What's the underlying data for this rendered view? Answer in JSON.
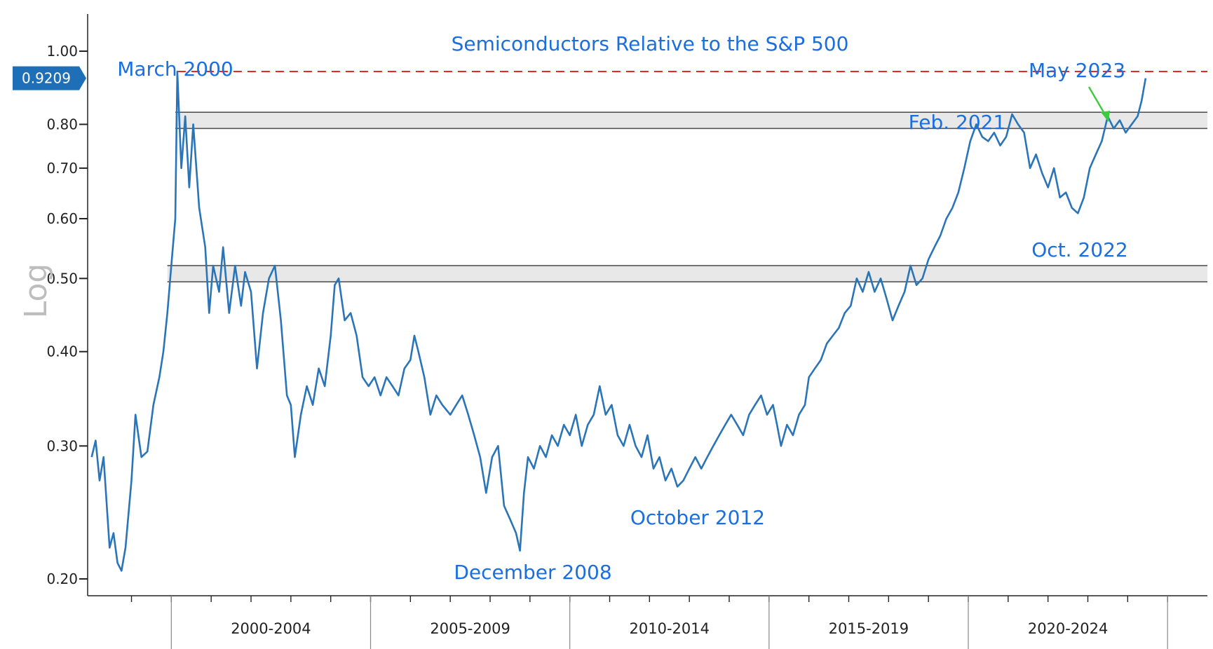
{
  "chart_data": {
    "type": "line",
    "title": "Semiconductors Relative to the S&P 500",
    "ylabel": "Log",
    "yscale": "log",
    "ylim": [
      0.19,
      1.12
    ],
    "xlim": [
      1997.9,
      2026.0
    ],
    "y_ticks": [
      {
        "value": 1.0,
        "label": "1.00"
      },
      {
        "value": 0.8,
        "label": "0.80"
      },
      {
        "value": 0.7,
        "label": "0.70"
      },
      {
        "value": 0.6,
        "label": "0.60"
      },
      {
        "value": 0.5,
        "label": "0.50"
      },
      {
        "value": 0.4,
        "label": "0.40"
      },
      {
        "value": 0.3,
        "label": "0.30"
      },
      {
        "value": 0.2,
        "label": "0.20"
      }
    ],
    "x_periods": [
      {
        "label": "2000-2004",
        "start": 2000,
        "end": 2005
      },
      {
        "label": "2005-2009",
        "start": 2005,
        "end": 2010
      },
      {
        "label": "2010-2014",
        "start": 2010,
        "end": 2015
      },
      {
        "label": "2015-2019",
        "start": 2015,
        "end": 2020
      },
      {
        "label": "2020-2024",
        "start": 2020,
        "end": 2025
      }
    ],
    "last_value_label": "0.9209",
    "last_value": 0.9209,
    "reference_line": {
      "value": 0.94,
      "color": "#e8262a"
    },
    "bands": [
      {
        "low": 0.79,
        "high": 0.83,
        "start": 2000.1
      },
      {
        "low": 0.495,
        "high": 0.52,
        "start": 1999.9
      }
    ],
    "annotations": [
      {
        "text": "March 2000",
        "x": 2000.2,
        "y": 0.94
      },
      {
        "text": "December 2008",
        "x": 2008.8,
        "y": 0.215
      },
      {
        "text": "October 2012",
        "x": 2012.1,
        "y": 0.267
      },
      {
        "text": "Feb. 2021",
        "x": 2021.1,
        "y": 0.825
      },
      {
        "text": "Oct. 2022",
        "x": 2022.75,
        "y": 0.61
      },
      {
        "text": "May 2023",
        "x": 2023.4,
        "y": 0.83
      }
    ],
    "series": [
      {
        "color": "#2a74b8",
        "points": [
          [
            1998.0,
            0.29
          ],
          [
            1998.1,
            0.305
          ],
          [
            1998.2,
            0.27
          ],
          [
            1998.3,
            0.29
          ],
          [
            1998.45,
            0.22
          ],
          [
            1998.55,
            0.23
          ],
          [
            1998.65,
            0.21
          ],
          [
            1998.75,
            0.205
          ],
          [
            1998.85,
            0.22
          ],
          [
            1999.0,
            0.27
          ],
          [
            1999.1,
            0.33
          ],
          [
            1999.25,
            0.29
          ],
          [
            1999.4,
            0.295
          ],
          [
            1999.55,
            0.34
          ],
          [
            1999.7,
            0.37
          ],
          [
            1999.8,
            0.4
          ],
          [
            1999.9,
            0.45
          ],
          [
            2000.0,
            0.52
          ],
          [
            2000.1,
            0.6
          ],
          [
            2000.15,
            0.94
          ],
          [
            2000.25,
            0.7
          ],
          [
            2000.35,
            0.82
          ],
          [
            2000.45,
            0.66
          ],
          [
            2000.55,
            0.8
          ],
          [
            2000.7,
            0.62
          ],
          [
            2000.85,
            0.55
          ],
          [
            2000.95,
            0.45
          ],
          [
            2001.05,
            0.52
          ],
          [
            2001.2,
            0.48
          ],
          [
            2001.3,
            0.55
          ],
          [
            2001.45,
            0.45
          ],
          [
            2001.6,
            0.52
          ],
          [
            2001.75,
            0.46
          ],
          [
            2001.85,
            0.51
          ],
          [
            2002.0,
            0.48
          ],
          [
            2002.15,
            0.38
          ],
          [
            2002.3,
            0.45
          ],
          [
            2002.45,
            0.5
          ],
          [
            2002.6,
            0.52
          ],
          [
            2002.75,
            0.44
          ],
          [
            2002.9,
            0.35
          ],
          [
            2003.0,
            0.34
          ],
          [
            2003.1,
            0.29
          ],
          [
            2003.25,
            0.33
          ],
          [
            2003.4,
            0.36
          ],
          [
            2003.55,
            0.34
          ],
          [
            2003.7,
            0.38
          ],
          [
            2003.85,
            0.36
          ],
          [
            2004.0,
            0.42
          ],
          [
            2004.1,
            0.49
          ],
          [
            2004.2,
            0.5
          ],
          [
            2004.35,
            0.44
          ],
          [
            2004.5,
            0.45
          ],
          [
            2004.65,
            0.42
          ],
          [
            2004.8,
            0.37
          ],
          [
            2004.95,
            0.36
          ],
          [
            2005.1,
            0.37
          ],
          [
            2005.25,
            0.35
          ],
          [
            2005.4,
            0.37
          ],
          [
            2005.55,
            0.36
          ],
          [
            2005.7,
            0.35
          ],
          [
            2005.85,
            0.38
          ],
          [
            2006.0,
            0.39
          ],
          [
            2006.1,
            0.42
          ],
          [
            2006.2,
            0.4
          ],
          [
            2006.35,
            0.37
          ],
          [
            2006.5,
            0.33
          ],
          [
            2006.65,
            0.35
          ],
          [
            2006.8,
            0.34
          ],
          [
            2007.0,
            0.33
          ],
          [
            2007.15,
            0.34
          ],
          [
            2007.3,
            0.35
          ],
          [
            2007.45,
            0.33
          ],
          [
            2007.6,
            0.31
          ],
          [
            2007.75,
            0.29
          ],
          [
            2007.9,
            0.26
          ],
          [
            2008.05,
            0.29
          ],
          [
            2008.2,
            0.3
          ],
          [
            2008.35,
            0.25
          ],
          [
            2008.5,
            0.24
          ],
          [
            2008.65,
            0.23
          ],
          [
            2008.75,
            0.218
          ],
          [
            2008.85,
            0.26
          ],
          [
            2008.95,
            0.29
          ],
          [
            2009.1,
            0.28
          ],
          [
            2009.25,
            0.3
          ],
          [
            2009.4,
            0.29
          ],
          [
            2009.55,
            0.31
          ],
          [
            2009.7,
            0.3
          ],
          [
            2009.85,
            0.32
          ],
          [
            2010.0,
            0.31
          ],
          [
            2010.15,
            0.33
          ],
          [
            2010.3,
            0.3
          ],
          [
            2010.45,
            0.32
          ],
          [
            2010.6,
            0.33
          ],
          [
            2010.75,
            0.36
          ],
          [
            2010.9,
            0.33
          ],
          [
            2011.05,
            0.34
          ],
          [
            2011.2,
            0.31
          ],
          [
            2011.35,
            0.3
          ],
          [
            2011.5,
            0.32
          ],
          [
            2011.65,
            0.3
          ],
          [
            2011.8,
            0.29
          ],
          [
            2011.95,
            0.31
          ],
          [
            2012.1,
            0.28
          ],
          [
            2012.25,
            0.29
          ],
          [
            2012.4,
            0.27
          ],
          [
            2012.55,
            0.28
          ],
          [
            2012.7,
            0.265
          ],
          [
            2012.85,
            0.27
          ],
          [
            2013.0,
            0.28
          ],
          [
            2013.15,
            0.29
          ],
          [
            2013.3,
            0.28
          ],
          [
            2013.45,
            0.29
          ],
          [
            2013.6,
            0.3
          ],
          [
            2013.75,
            0.31
          ],
          [
            2013.9,
            0.32
          ],
          [
            2014.05,
            0.33
          ],
          [
            2014.2,
            0.32
          ],
          [
            2014.35,
            0.31
          ],
          [
            2014.5,
            0.33
          ],
          [
            2014.65,
            0.34
          ],
          [
            2014.8,
            0.35
          ],
          [
            2014.95,
            0.33
          ],
          [
            2015.1,
            0.34
          ],
          [
            2015.2,
            0.32
          ],
          [
            2015.3,
            0.3
          ],
          [
            2015.45,
            0.32
          ],
          [
            2015.6,
            0.31
          ],
          [
            2015.75,
            0.33
          ],
          [
            2015.9,
            0.34
          ],
          [
            2016.0,
            0.37
          ],
          [
            2016.15,
            0.38
          ],
          [
            2016.3,
            0.39
          ],
          [
            2016.45,
            0.41
          ],
          [
            2016.6,
            0.42
          ],
          [
            2016.75,
            0.43
          ],
          [
            2016.9,
            0.45
          ],
          [
            2017.05,
            0.46
          ],
          [
            2017.2,
            0.5
          ],
          [
            2017.35,
            0.48
          ],
          [
            2017.5,
            0.51
          ],
          [
            2017.65,
            0.48
          ],
          [
            2017.8,
            0.5
          ],
          [
            2017.95,
            0.47
          ],
          [
            2018.1,
            0.44
          ],
          [
            2018.25,
            0.46
          ],
          [
            2018.4,
            0.48
          ],
          [
            2018.55,
            0.52
          ],
          [
            2018.7,
            0.49
          ],
          [
            2018.85,
            0.5
          ],
          [
            2019.0,
            0.53
          ],
          [
            2019.15,
            0.55
          ],
          [
            2019.3,
            0.57
          ],
          [
            2019.45,
            0.6
          ],
          [
            2019.6,
            0.62
          ],
          [
            2019.75,
            0.65
          ],
          [
            2019.9,
            0.7
          ],
          [
            2020.05,
            0.76
          ],
          [
            2020.2,
            0.8
          ],
          [
            2020.35,
            0.77
          ],
          [
            2020.5,
            0.76
          ],
          [
            2020.65,
            0.78
          ],
          [
            2020.8,
            0.75
          ],
          [
            2020.95,
            0.77
          ],
          [
            2021.1,
            0.825
          ],
          [
            2021.25,
            0.8
          ],
          [
            2021.4,
            0.78
          ],
          [
            2021.55,
            0.7
          ],
          [
            2021.7,
            0.73
          ],
          [
            2021.85,
            0.69
          ],
          [
            2022.0,
            0.66
          ],
          [
            2022.15,
            0.7
          ],
          [
            2022.3,
            0.64
          ],
          [
            2022.45,
            0.65
          ],
          [
            2022.6,
            0.62
          ],
          [
            2022.75,
            0.61
          ],
          [
            2022.9,
            0.64
          ],
          [
            2023.05,
            0.7
          ],
          [
            2023.2,
            0.73
          ],
          [
            2023.35,
            0.76
          ],
          [
            2023.5,
            0.82
          ],
          [
            2023.65,
            0.79
          ],
          [
            2023.8,
            0.81
          ],
          [
            2023.95,
            0.78
          ],
          [
            2024.1,
            0.8
          ],
          [
            2024.25,
            0.82
          ],
          [
            2024.35,
            0.86
          ],
          [
            2024.45,
            0.9209
          ]
        ]
      }
    ]
  }
}
